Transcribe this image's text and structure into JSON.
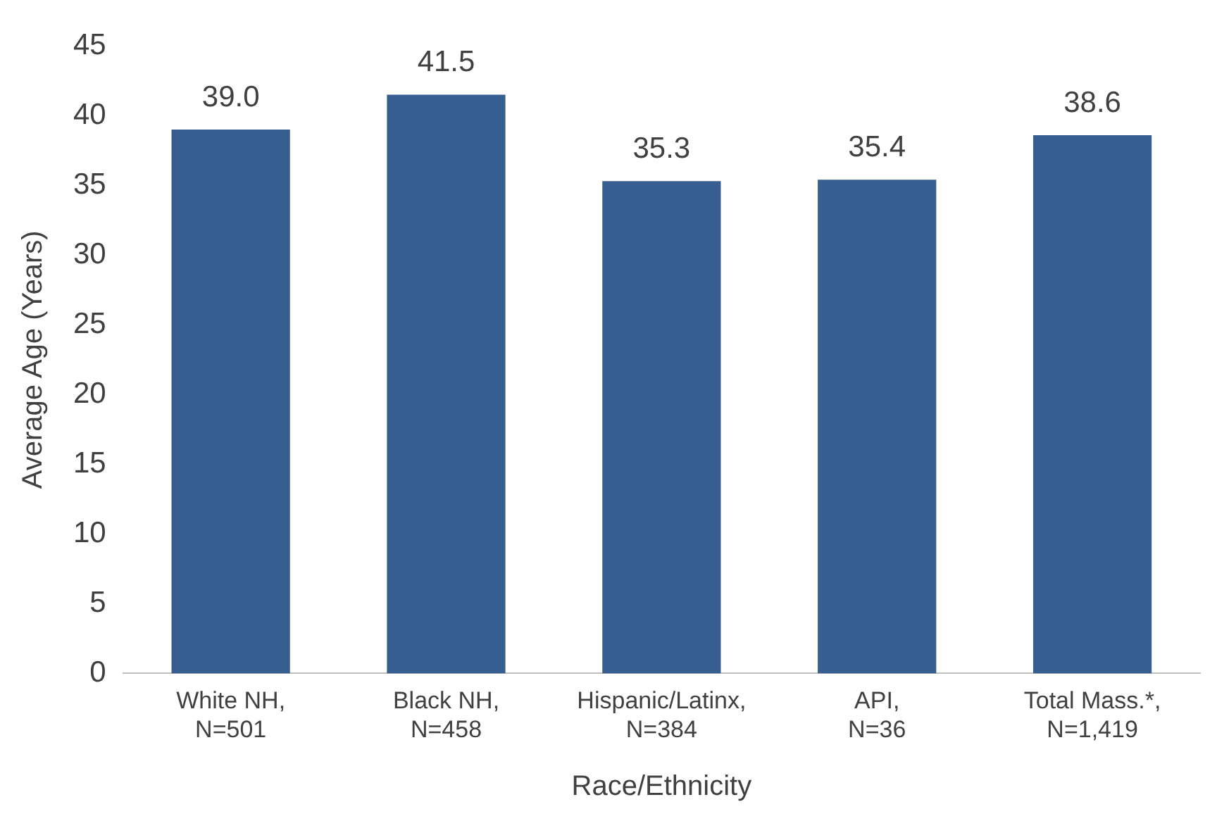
{
  "chart_data": {
    "type": "bar",
    "categories": [
      "White NH,\nN=501",
      "Black NH,\nN=458",
      "Hispanic/Latinx,\nN=384",
      "API,\nN=36",
      "Total Mass.*,\nN=1,419"
    ],
    "values": [
      39.0,
      41.5,
      35.3,
      35.4,
      38.6
    ],
    "color": "#365e90",
    "xlabel": "Race/Ethnicity",
    "ylabel": "Average Age (Years)",
    "ylim": [
      0,
      45
    ],
    "yticks": [
      0,
      5,
      10,
      15,
      20,
      25,
      30,
      35,
      40,
      45
    ],
    "value_labels": [
      "39.0",
      "41.5",
      "35.3",
      "35.4",
      "38.6"
    ],
    "grid": false,
    "legend": false
  }
}
